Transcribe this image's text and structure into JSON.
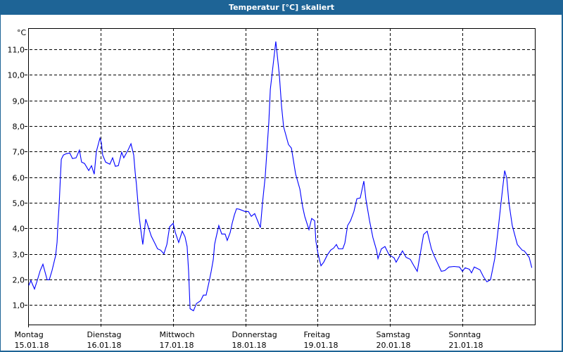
{
  "window": {
    "title": "Temperatur [°C] skaliert"
  },
  "colors": {
    "titlebar": "#1e6496",
    "line": "#0000ff",
    "grid": "#000000"
  },
  "chart_data": {
    "type": "line",
    "title": "Temperatur [°C] skaliert",
    "ylabel": "°C",
    "ylim": [
      0.24,
      11.83
    ],
    "yticks": [
      "1,0",
      "2,0",
      "3,0",
      "4,0",
      "5,0",
      "6,0",
      "7,0",
      "8,0",
      "9,0",
      "10,0",
      "11,0"
    ],
    "ytick_values": [
      1,
      2,
      3,
      4,
      5,
      6,
      7,
      8,
      9,
      10,
      11
    ],
    "xlim": [
      "15.01.18 00:00",
      "22.01.18 00:00"
    ],
    "xticks": [
      {
        "day": "Montag",
        "date": "15.01.18"
      },
      {
        "day": "Dienstag",
        "date": "16.01.18"
      },
      {
        "day": "Mittwoch",
        "date": "17.01.18"
      },
      {
        "day": "Donnerstag",
        "date": "18.01.18"
      },
      {
        "day": "Freitag",
        "date": "19.01.18"
      },
      {
        "day": "Samstag",
        "date": "20.01.18"
      },
      {
        "day": "Sonntag",
        "date": "21.01.18"
      }
    ],
    "grid": true,
    "series": [
      {
        "points": [
          [
            "15.01.18 00:12",
            1.77
          ],
          [
            "15.01.18 00:54",
            1.96
          ],
          [
            "15.01.18 02:06",
            1.63
          ],
          [
            "15.01.18 03:00",
            1.96
          ],
          [
            "15.01.18 04:00",
            2.35
          ],
          [
            "15.01.18 04:54",
            2.6
          ],
          [
            "15.01.18 06:18",
            1.99
          ],
          [
            "15.01.18 07:00",
            1.99
          ],
          [
            "15.01.18 07:54",
            2.35
          ],
          [
            "15.01.18 09:06",
            2.93
          ],
          [
            "15.01.18 09:36",
            3.46
          ],
          [
            "15.01.18 09:48",
            4.0
          ],
          [
            "15.01.18 10:18",
            4.94
          ],
          [
            "15.01.18 10:42",
            6.04
          ],
          [
            "15.01.18 11:00",
            6.7
          ],
          [
            "15.01.18 11:42",
            6.87
          ],
          [
            "15.01.18 12:36",
            6.92
          ],
          [
            "15.01.18 13:48",
            6.95
          ],
          [
            "15.01.18 14:42",
            6.73
          ],
          [
            "15.01.18 15:54",
            6.76
          ],
          [
            "15.01.18 17:00",
            7.06
          ],
          [
            "15.01.18 17:42",
            6.59
          ],
          [
            "15.01.18 18:42",
            6.54
          ],
          [
            "15.01.18 20:06",
            6.26
          ],
          [
            "15.01.18 21:00",
            6.45
          ],
          [
            "15.01.18 21:54",
            6.12
          ],
          [
            "15.01.18 22:36",
            7.0
          ],
          [
            "15.01.18 23:48",
            7.53
          ],
          [
            "16.01.18 00:18",
            7.34
          ],
          [
            "16.01.18 00:42",
            6.87
          ],
          [
            "16.01.18 01:42",
            6.59
          ],
          [
            "16.01.18 03:06",
            6.51
          ],
          [
            "16.01.18 04:00",
            6.76
          ],
          [
            "16.01.18 04:54",
            6.43
          ],
          [
            "16.01.18 05:54",
            6.45
          ],
          [
            "16.01.18 07:00",
            6.98
          ],
          [
            "16.01.18 07:42",
            6.76
          ],
          [
            "16.01.18 09:06",
            7.06
          ],
          [
            "16.01.18 10:06",
            7.31
          ],
          [
            "16.01.18 11:00",
            6.87
          ],
          [
            "16.01.18 11:30",
            6.18
          ],
          [
            "16.01.18 11:54",
            5.71
          ],
          [
            "16.01.18 12:24",
            5.0
          ],
          [
            "16.01.18 12:54",
            4.39
          ],
          [
            "16.01.18 13:18",
            3.98
          ],
          [
            "16.01.18 14:00",
            3.37
          ],
          [
            "16.01.18 15:00",
            4.36
          ],
          [
            "16.01.18 15:42",
            4.11
          ],
          [
            "16.01.18 16:48",
            3.7
          ],
          [
            "16.01.18 18:00",
            3.42
          ],
          [
            "16.01.18 18:54",
            3.2
          ],
          [
            "16.01.18 19:54",
            3.15
          ],
          [
            "16.01.18 21:00",
            3.01
          ],
          [
            "16.01.18 22:00",
            3.37
          ],
          [
            "16.01.18 22:54",
            4.06
          ],
          [
            "17.01.18 00:06",
            4.2
          ],
          [
            "17.01.18 00:48",
            3.84
          ],
          [
            "17.01.18 01:54",
            3.45
          ],
          [
            "17.01.18 03:06",
            3.89
          ],
          [
            "17.01.18 04:00",
            3.67
          ],
          [
            "17.01.18 04:42",
            3.29
          ],
          [
            "17.01.18 05:12",
            2.32
          ],
          [
            "17.01.18 05:42",
            0.86
          ],
          [
            "17.01.18 06:48",
            0.78
          ],
          [
            "17.01.18 07:48",
            1.06
          ],
          [
            "17.01.18 09:12",
            1.17
          ],
          [
            "17.01.18 10:06",
            1.39
          ],
          [
            "17.01.18 11:00",
            1.39
          ],
          [
            "17.01.18 12:00",
            1.91
          ],
          [
            "17.01.18 12:42",
            2.32
          ],
          [
            "17.01.18 13:24",
            2.79
          ],
          [
            "17.01.18 13:48",
            3.37
          ],
          [
            "17.01.18 14:18",
            3.64
          ],
          [
            "17.01.18 15:12",
            4.11
          ],
          [
            "17.01.18 16:12",
            3.78
          ],
          [
            "17.01.18 17:18",
            3.78
          ],
          [
            "17.01.18 18:00",
            3.53
          ],
          [
            "17.01.18 19:00",
            3.84
          ],
          [
            "17.01.18 19:42",
            4.22
          ],
          [
            "17.01.18 20:24",
            4.53
          ],
          [
            "17.01.18 21:06",
            4.77
          ],
          [
            "17.01.18 22:00",
            4.75
          ],
          [
            "17.01.18 23:54",
            4.66
          ],
          [
            "18.01.18 01:00",
            4.66
          ],
          [
            "18.01.18 02:00",
            4.47
          ],
          [
            "18.01.18 03:06",
            4.58
          ],
          [
            "18.01.18 05:00",
            4.03
          ],
          [
            "18.01.18 05:42",
            4.99
          ],
          [
            "18.01.18 06:36",
            6.04
          ],
          [
            "18.01.18 07:48",
            8.16
          ],
          [
            "18.01.18 08:18",
            9.43
          ],
          [
            "18.01.18 09:12",
            10.37
          ],
          [
            "18.01.18 10:06",
            11.31
          ],
          [
            "18.01.18 10:24",
            11.0
          ],
          [
            "18.01.18 11:18",
            9.98
          ],
          [
            "18.01.18 12:00",
            8.8
          ],
          [
            "18.01.18 12:42",
            7.97
          ],
          [
            "18.01.18 14:18",
            7.28
          ],
          [
            "18.01.18 15:18",
            7.14
          ],
          [
            "18.01.18 16:42",
            6.12
          ],
          [
            "18.01.18 18:06",
            5.54
          ],
          [
            "18.01.18 19:00",
            4.85
          ],
          [
            "18.01.18 19:42",
            4.47
          ],
          [
            "18.01.18 21:06",
            3.95
          ],
          [
            "18.01.18 22:00",
            4.39
          ],
          [
            "18.01.18 23:00",
            4.3
          ],
          [
            "18.01.18 23:24",
            3.5
          ],
          [
            "19.01.18 00:06",
            3.01
          ],
          [
            "19.01.18 01:06",
            2.54
          ],
          [
            "19.01.18 02:00",
            2.68
          ],
          [
            "19.01.18 03:12",
            2.96
          ],
          [
            "19.01.18 04:18",
            3.15
          ],
          [
            "19.01.18 05:18",
            3.23
          ],
          [
            "19.01.18 06:12",
            3.37
          ],
          [
            "19.01.18 06:54",
            3.2
          ],
          [
            "19.01.18 08:18",
            3.2
          ],
          [
            "19.01.18 09:00",
            3.42
          ],
          [
            "19.01.18 09:54",
            4.11
          ],
          [
            "19.01.18 10:54",
            4.3
          ],
          [
            "19.01.18 12:00",
            4.66
          ],
          [
            "19.01.18 13:00",
            5.16
          ],
          [
            "19.01.18 14:06",
            5.19
          ],
          [
            "19.01.18 15:18",
            5.85
          ],
          [
            "19.01.18 16:00",
            5.13
          ],
          [
            "19.01.18 17:12",
            4.3
          ],
          [
            "19.01.18 18:18",
            3.64
          ],
          [
            "19.01.18 19:30",
            3.15
          ],
          [
            "19.01.18 20:00",
            2.82
          ],
          [
            "19.01.18 21:06",
            3.2
          ],
          [
            "19.01.18 22:18",
            3.29
          ],
          [
            "19.01.18 23:42",
            2.96
          ],
          [
            "20.01.18 01:18",
            2.85
          ],
          [
            "20.01.18 02:00",
            2.68
          ],
          [
            "20.01.18 04:06",
            3.12
          ],
          [
            "20.01.18 05:18",
            2.87
          ],
          [
            "20.01.18 06:42",
            2.79
          ],
          [
            "20.01.18 07:54",
            2.54
          ],
          [
            "20.01.18 09:00",
            2.32
          ],
          [
            "20.01.18 11:06",
            3.76
          ],
          [
            "20.01.18 12:18",
            3.89
          ],
          [
            "20.01.18 13:42",
            3.2
          ],
          [
            "20.01.18 14:36",
            2.93
          ],
          [
            "20.01.18 17:00",
            2.32
          ],
          [
            "20.01.18 18:06",
            2.35
          ],
          [
            "20.01.18 19:30",
            2.49
          ],
          [
            "20.01.18 21:12",
            2.51
          ],
          [
            "20.01.18 23:00",
            2.49
          ],
          [
            "21.01.18 00:00",
            2.32
          ],
          [
            "21.01.18 00:54",
            2.46
          ],
          [
            "21.01.18 02:18",
            2.4
          ],
          [
            "21.01.18 03:00",
            2.26
          ],
          [
            "21.01.18 03:54",
            2.49
          ],
          [
            "21.01.18 05:48",
            2.38
          ],
          [
            "21.01.18 07:00",
            2.1
          ],
          [
            "21.01.18 08:06",
            1.91
          ],
          [
            "21.01.18 09:18",
            1.99
          ],
          [
            "21.01.18 10:42",
            2.82
          ],
          [
            "21.01.18 11:48",
            3.92
          ],
          [
            "21.01.18 12:48",
            5.02
          ],
          [
            "21.01.18 14:00",
            6.26
          ],
          [
            "21.01.18 14:42",
            5.96
          ],
          [
            "21.01.18 15:24",
            5.02
          ],
          [
            "21.01.18 16:30",
            4.11
          ],
          [
            "21.01.18 18:12",
            3.37
          ],
          [
            "21.01.18 19:48",
            3.15
          ],
          [
            "21.01.18 20:30",
            3.12
          ],
          [
            "21.01.18 22:06",
            2.87
          ],
          [
            "21.01.18 23:00",
            2.46
          ]
        ]
      }
    ]
  }
}
